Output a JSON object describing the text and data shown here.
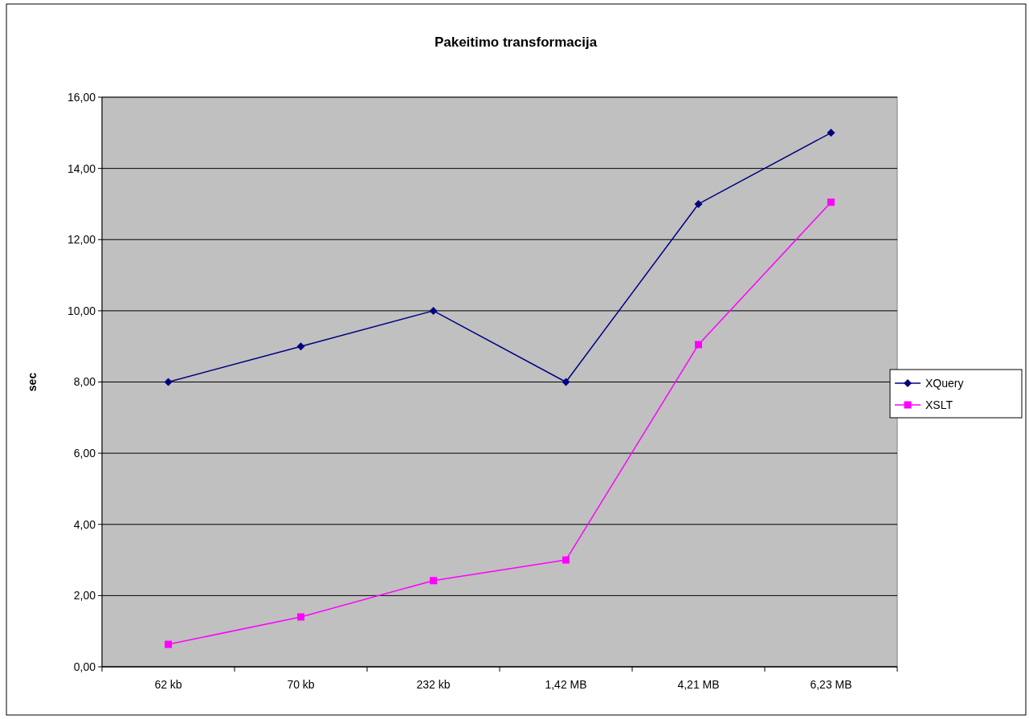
{
  "chart_data": {
    "type": "line",
    "title": "Pakeitimo transformacija",
    "ylabel": "sec",
    "categories": [
      "62 kb",
      "70 kb",
      "232 kb",
      "1,42 MB",
      "4,21 MB",
      "6,23 MB"
    ],
    "series": [
      {
        "name": "XQuery",
        "color": "#000080",
        "marker": "diamond",
        "values": [
          8,
          9,
          10,
          8,
          13,
          15
        ]
      },
      {
        "name": "XSLT",
        "color": "#ff00ff",
        "marker": "square",
        "values": [
          0.63,
          1.4,
          2.42,
          3.0,
          9.05,
          13.05
        ]
      }
    ],
    "ylim": [
      0,
      16
    ],
    "yticks": [
      {
        "value": 0,
        "label": "0,00"
      },
      {
        "value": 2,
        "label": "2,00"
      },
      {
        "value": 4,
        "label": "4,00"
      },
      {
        "value": 6,
        "label": "6,00"
      },
      {
        "value": 8,
        "label": "8,00"
      },
      {
        "value": 10,
        "label": "10,00"
      },
      {
        "value": 12,
        "label": "12,00"
      },
      {
        "value": 14,
        "label": "14,00"
      },
      {
        "value": 16,
        "label": "16,00"
      }
    ],
    "grid": "y",
    "legend": "right",
    "line_style": "solid"
  }
}
